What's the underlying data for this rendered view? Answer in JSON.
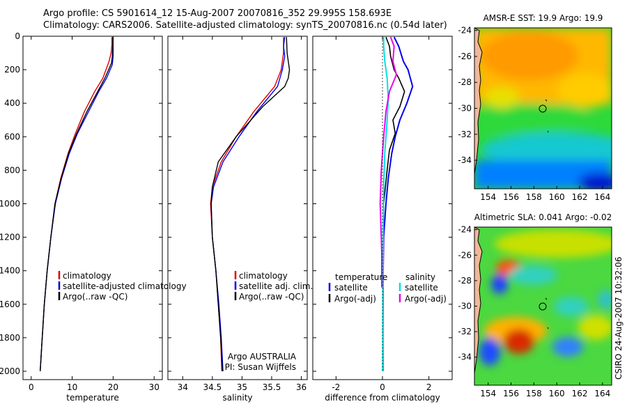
{
  "header": {
    "line1": "Argo profile: CS 5901614_12 15-Aug-2007 20070816_352 29.995S 158.693E",
    "line2": "Climatology: CARS2006. Satellite-adjusted climatology: synTS_20070816.nc (0.54d later)"
  },
  "credit": "CSIRO 24-Aug-2007 10:32:06",
  "colors": {
    "climatology": "#dd0000",
    "satellite": "#0000ee",
    "argo": "#000000",
    "sat_diff": "#00e0e0",
    "argo_adj": "#ee00ee"
  },
  "chart_data": [
    {
      "type": "line",
      "panel": "temperature",
      "xlabel": "temperature",
      "ylabel": "",
      "xlim": [
        -2,
        32
      ],
      "ylim": [
        2050,
        0
      ],
      "y_inverted": true,
      "xticks": [
        0,
        10,
        20,
        30
      ],
      "yticks": [
        0,
        200,
        400,
        600,
        800,
        1000,
        1200,
        1400,
        1600,
        1800,
        2000
      ],
      "legend": [
        "climatology",
        "satellite-adjusted climatology",
        "Argo(..raw -QC)"
      ],
      "series": [
        {
          "name": "climatology",
          "color": "#dd0000",
          "width": 1.4,
          "points": [
            [
              19.7,
              5
            ],
            [
              19.7,
              50
            ],
            [
              19.5,
              100
            ],
            [
              19.0,
              150
            ],
            [
              17.5,
              250
            ],
            [
              15.5,
              330
            ],
            [
              13.0,
              450
            ],
            [
              10.8,
              580
            ],
            [
              9.0,
              700
            ],
            [
              7.2,
              850
            ],
            [
              5.8,
              1000
            ],
            [
              4.8,
              1200
            ],
            [
              3.9,
              1400
            ],
            [
              3.2,
              1600
            ],
            [
              2.7,
              1800
            ],
            [
              2.2,
              2000
            ]
          ]
        },
        {
          "name": "satellite-adjusted climatology",
          "color": "#0000ee",
          "width": 1.4,
          "points": [
            [
              20.0,
              5
            ],
            [
              20.0,
              60
            ],
            [
              20.0,
              120
            ],
            [
              19.8,
              170
            ],
            [
              18.4,
              250
            ],
            [
              16.5,
              330
            ],
            [
              14.0,
              450
            ],
            [
              11.3,
              580
            ],
            [
              9.3,
              700
            ],
            [
              7.4,
              850
            ],
            [
              5.9,
              1000
            ],
            [
              4.8,
              1200
            ],
            [
              3.9,
              1400
            ],
            [
              3.2,
              1600
            ],
            [
              2.7,
              1800
            ],
            [
              2.2,
              2000
            ]
          ]
        },
        {
          "name": "Argo(..raw -QC)",
          "color": "#000000",
          "width": 1.4,
          "points": [
            [
              19.9,
              5
            ],
            [
              19.9,
              60
            ],
            [
              19.8,
              120
            ],
            [
              19.6,
              160
            ],
            [
              18.0,
              250
            ],
            [
              16.0,
              340
            ],
            [
              13.6,
              450
            ],
            [
              11.1,
              580
            ],
            [
              9.1,
              700
            ],
            [
              7.3,
              850
            ],
            [
              5.8,
              1000
            ],
            [
              4.8,
              1200
            ],
            [
              3.9,
              1400
            ],
            [
              3.2,
              1600
            ],
            [
              2.7,
              1800
            ],
            [
              2.2,
              2000
            ]
          ]
        }
      ]
    },
    {
      "type": "line",
      "panel": "salinity",
      "xlabel": "salinity",
      "ylabel": "",
      "xlim": [
        33.75,
        36.1
      ],
      "ylim": [
        2050,
        0
      ],
      "y_inverted": true,
      "xticks": [
        34,
        34.5,
        35,
        35.5,
        36
      ],
      "legend": [
        "climatology",
        "satellite adj. clim.",
        "Argo(..raw -QC)"
      ],
      "annotation": [
        "Argo AUSTRALIA",
        "PI: Susan Wijffels"
      ],
      "series": [
        {
          "name": "climatology",
          "color": "#dd0000",
          "width": 1.4,
          "points": [
            [
              35.7,
              5
            ],
            [
              35.7,
              100
            ],
            [
              35.66,
              200
            ],
            [
              35.55,
              300
            ],
            [
              35.2,
              450
            ],
            [
              34.9,
              600
            ],
            [
              34.65,
              750
            ],
            [
              34.5,
              900
            ],
            [
              34.47,
              1000
            ],
            [
              34.5,
              1200
            ],
            [
              34.56,
              1400
            ],
            [
              34.6,
              1600
            ],
            [
              34.64,
              1800
            ],
            [
              34.66,
              2000
            ]
          ]
        },
        {
          "name": "satellite adj. clim.",
          "color": "#0000ee",
          "width": 1.4,
          "points": [
            [
              35.72,
              5
            ],
            [
              35.7,
              60
            ],
            [
              35.72,
              120
            ],
            [
              35.68,
              200
            ],
            [
              35.6,
              300
            ],
            [
              35.25,
              450
            ],
            [
              34.95,
              600
            ],
            [
              34.68,
              750
            ],
            [
              34.52,
              900
            ],
            [
              34.48,
              1000
            ],
            [
              34.5,
              1200
            ],
            [
              34.56,
              1400
            ],
            [
              34.61,
              1600
            ],
            [
              34.65,
              1800
            ],
            [
              34.68,
              2000
            ]
          ]
        },
        {
          "name": "Argo(..raw -QC)",
          "color": "#000000",
          "width": 1.4,
          "points": [
            [
              35.75,
              5
            ],
            [
              35.76,
              100
            ],
            [
              35.8,
              200
            ],
            [
              35.78,
              250
            ],
            [
              35.72,
              300
            ],
            [
              35.35,
              420
            ],
            [
              34.9,
              600
            ],
            [
              34.6,
              750
            ],
            [
              34.5,
              900
            ],
            [
              34.48,
              1000
            ],
            [
              34.5,
              1200
            ],
            [
              34.56,
              1400
            ],
            [
              34.6,
              1600
            ],
            [
              34.64,
              1800
            ],
            [
              34.67,
              2000
            ]
          ]
        }
      ]
    },
    {
      "type": "line",
      "panel": "difference",
      "xlabel": "difference from climatology",
      "ylabel": "",
      "xlim": [
        -3,
        3
      ],
      "ylim": [
        2050,
        0
      ],
      "y_inverted": true,
      "xticks": [
        -2,
        0,
        2
      ],
      "legend_headers": [
        "temperature",
        "salinity"
      ],
      "legend": [
        "satellite",
        "Argo(-adj)",
        "satellite",
        "Argo(-adj)"
      ],
      "series": [
        {
          "name": "satellite",
          "group": "temperature",
          "color": "#0000ee",
          "width": 2,
          "points": [
            [
              0.5,
              5
            ],
            [
              0.7,
              60
            ],
            [
              0.9,
              150
            ],
            [
              1.1,
              200
            ],
            [
              1.3,
              300
            ],
            [
              1.05,
              400
            ],
            [
              0.75,
              500
            ],
            [
              0.55,
              600
            ],
            [
              0.4,
              700
            ],
            [
              0.25,
              850
            ],
            [
              0.15,
              1000
            ],
            [
              0.05,
              1200
            ],
            [
              0.03,
              1400
            ],
            [
              0.02,
              1700
            ],
            [
              0.02,
              2000
            ]
          ]
        },
        {
          "name": "Argo(-adj)",
          "group": "temperature",
          "color": "#000000",
          "width": 1.6,
          "points": [
            [
              0.15,
              5
            ],
            [
              0.3,
              60
            ],
            [
              0.35,
              120
            ],
            [
              0.5,
              200
            ],
            [
              0.7,
              250
            ],
            [
              0.95,
              330
            ],
            [
              0.75,
              420
            ],
            [
              0.45,
              500
            ],
            [
              0.55,
              580
            ],
            [
              0.3,
              680
            ],
            [
              0.2,
              800
            ],
            [
              0.05,
              1000
            ],
            [
              0.03,
              1200
            ],
            [
              0.03,
              1500
            ],
            [
              0.02,
              1800
            ],
            [
              0.02,
              2000
            ]
          ]
        },
        {
          "name": "satellite",
          "group": "salinity",
          "color": "#00e0e0",
          "width": 2,
          "points": [
            [
              0.05,
              5
            ],
            [
              0.05,
              60
            ],
            [
              0.1,
              150
            ],
            [
              0.2,
              250
            ],
            [
              0.25,
              380
            ],
            [
              0.2,
              500
            ],
            [
              0.1,
              700
            ],
            [
              0.05,
              900
            ],
            [
              0.03,
              1200
            ],
            [
              0.02,
              1600
            ],
            [
              0.01,
              2000
            ]
          ]
        },
        {
          "name": "Argo(-adj)",
          "group": "salinity",
          "color": "#ee00ee",
          "width": 2,
          "points": [
            [
              0.35,
              5
            ],
            [
              0.5,
              60
            ],
            [
              0.45,
              150
            ],
            [
              0.6,
              230
            ],
            [
              0.3,
              330
            ],
            [
              0.15,
              450
            ],
            [
              0.05,
              600
            ],
            [
              -0.05,
              800
            ],
            [
              -0.1,
              1000
            ],
            [
              -0.05,
              1200
            ],
            [
              -0.03,
              1300
            ],
            [
              -0.03,
              1500
            ]
          ]
        },
        {
          "name": "zero",
          "group": "reference",
          "color": "#000000",
          "width": 1,
          "dashed": true,
          "points": [
            [
              0,
              5
            ],
            [
              0,
              2000
            ]
          ]
        }
      ]
    },
    {
      "type": "heatmap",
      "panel": "sst-map",
      "title": "AMSR-E SST: 19.9 Argo: 19.9",
      "xticks": [
        154,
        156,
        158,
        160,
        162,
        164
      ],
      "yticks": [
        -24,
        -26,
        -28,
        -30,
        -32,
        -34
      ],
      "xlim": [
        152.8,
        164.8
      ],
      "ylim": [
        -36.2,
        -23.8
      ],
      "profile_marker": [
        158.69,
        -30.0
      ]
    },
    {
      "type": "heatmap",
      "panel": "sla-map",
      "title": "Altimetric SLA: 0.041 Argo: -0.02",
      "xticks": [
        154,
        156,
        158,
        160,
        162,
        164
      ],
      "yticks": [
        -24,
        -26,
        -28,
        -30,
        -32,
        -34
      ],
      "xlim": [
        152.8,
        164.8
      ],
      "ylim": [
        -36.2,
        -23.8
      ],
      "profile_marker": [
        158.69,
        -30.0
      ]
    }
  ]
}
